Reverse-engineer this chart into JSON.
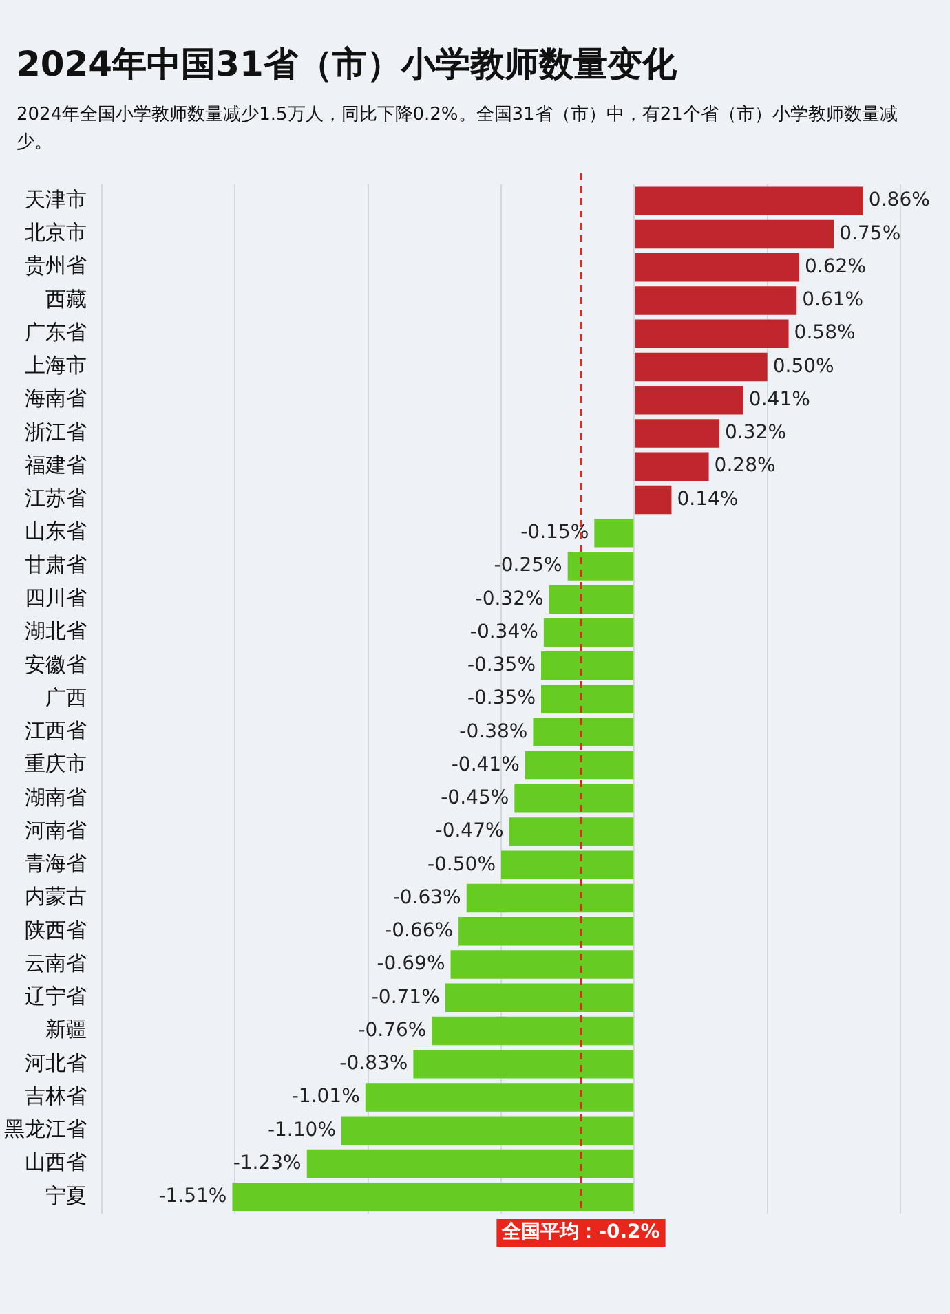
{
  "chart_data": {
    "type": "bar",
    "orientation": "horizontal",
    "title": "2024年中国31省（市）小学教师数量变化",
    "subtitle": "2024年全国小学教师数量减少1.5万人，同比下降0.2%。全国31省（市）中，有21个省（市）小学教师数量减少。",
    "categories": [
      "天津市",
      "北京市",
      "贵州省",
      "西藏",
      "广东省",
      "上海市",
      "海南省",
      "浙江省",
      "福建省",
      "江苏省",
      "山东省",
      "甘肃省",
      "四川省",
      "湖北省",
      "安徽省",
      "广西",
      "江西省",
      "重庆市",
      "湖南省",
      "河南省",
      "青海省",
      "内蒙古",
      "陕西省",
      "云南省",
      "辽宁省",
      "新疆",
      "河北省",
      "吉林省",
      "黑龙江省",
      "山西省",
      "宁夏"
    ],
    "values": [
      0.86,
      0.75,
      0.62,
      0.61,
      0.58,
      0.5,
      0.41,
      0.32,
      0.28,
      0.14,
      -0.15,
      -0.25,
      -0.32,
      -0.34,
      -0.35,
      -0.35,
      -0.38,
      -0.41,
      -0.45,
      -0.47,
      -0.5,
      -0.63,
      -0.66,
      -0.69,
      -0.71,
      -0.76,
      -0.83,
      -1.01,
      -1.1,
      -1.23,
      -1.51
    ],
    "colors": [
      "#c0272d",
      "#c0272d",
      "#c0272d",
      "#c0272d",
      "#c0272d",
      "#c0272d",
      "#c0272d",
      "#c0272d",
      "#c0272d",
      "#c0272d",
      "#66cc22",
      "#66cc22",
      "#66cc22",
      "#66cc22",
      "#66cc22",
      "#66cc22",
      "#66cc22",
      "#66cc22",
      "#66cc22",
      "#66cc22",
      "#66cc22",
      "#66cc22",
      "#66cc22",
      "#66cc22",
      "#66cc22",
      "#66cc22",
      "#66cc22",
      "#66cc22",
      "#66cc22",
      "#66cc22",
      "#66cc22"
    ],
    "value_labels": [
      "0.86%",
      "0.75%",
      "0.62%",
      "0.61%",
      "0.58%",
      "0.50%",
      "0.41%",
      "0.32%",
      "0.28%",
      "0.14%",
      "-0.15%",
      "-0.25%",
      "-0.32%",
      "-0.34%",
      "-0.35%",
      "-0.35%",
      "-0.38%",
      "-0.41%",
      "-0.45%",
      "-0.47%",
      "-0.50%",
      "-0.63%",
      "-0.66%",
      "-0.69%",
      "-0.71%",
      "-0.76%",
      "-0.83%",
      "-1.01%",
      "-1.10%",
      "-1.23%",
      "-1.51%"
    ],
    "xlim": [
      -2.0,
      1.0
    ],
    "xticks": [
      {
        "value": -2.0,
        "label": null
      },
      {
        "value": -1.5,
        "label": null
      },
      {
        "value": -1.0,
        "label": null
      },
      {
        "value": -0.5,
        "label": null
      },
      {
        "value": 0,
        "label": null
      },
      {
        "value": 0.5,
        "label": null
      },
      {
        "value": 1.0,
        "label": null
      }
    ],
    "ref_lines": [
      {
        "axis": "x",
        "value": -0.2,
        "label": "全国平均：-0.2%",
        "color": "#e8261c",
        "line_style": "dashed"
      }
    ],
    "grid": "x",
    "tick_labels": "y",
    "legend": false
  }
}
